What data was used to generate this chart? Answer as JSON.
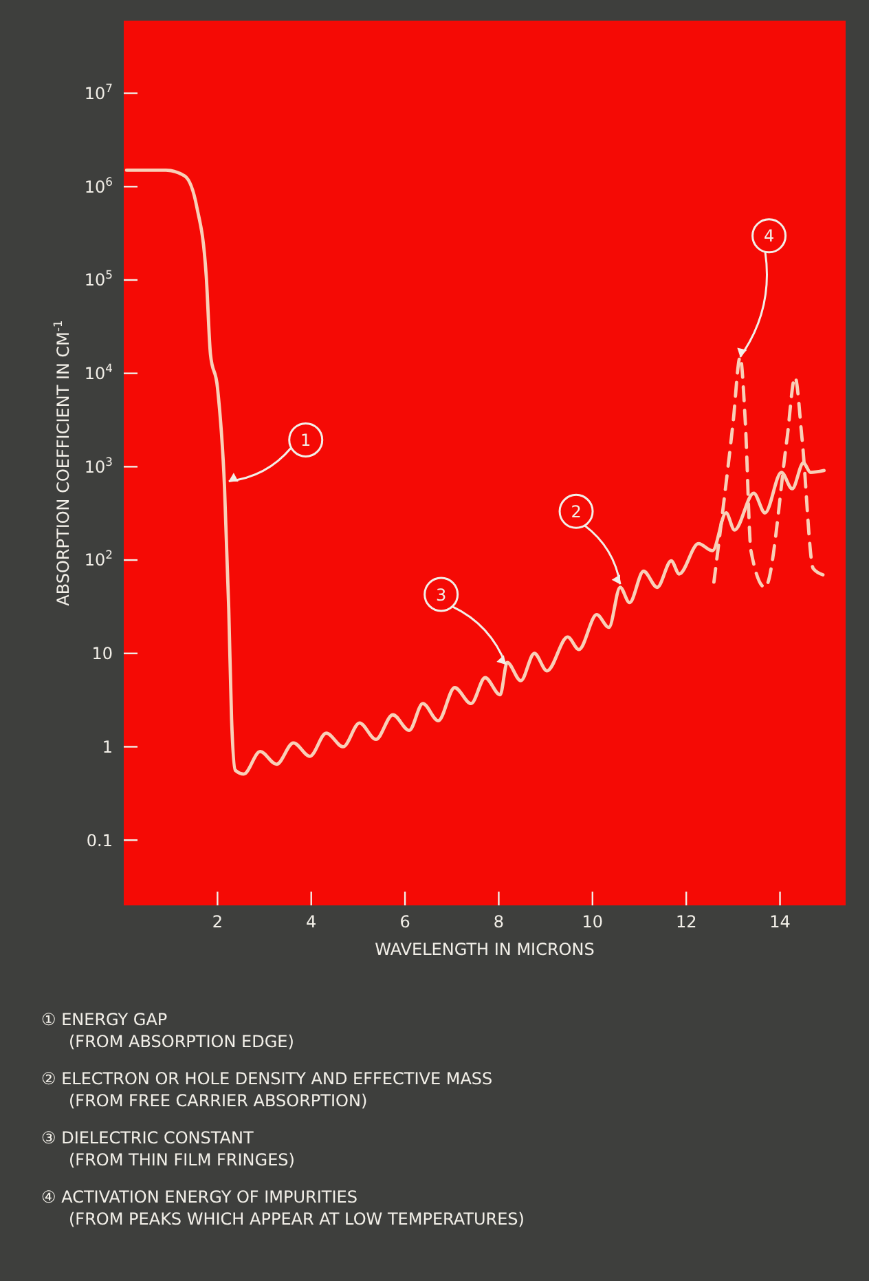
{
  "chart_data": {
    "type": "line",
    "xlabel": "WAVELENGTH IN MICRONS",
    "ylabel": "ABSORPTION COEFFICIENT IN CM$^{-1}$",
    "log": "y",
    "xlim": [
      0,
      15.4
    ],
    "xticks": [
      2,
      4,
      6,
      8,
      10,
      12,
      14
    ],
    "ylim": [
      0.02,
      60000000
    ],
    "yticks": [
      {
        "value": 0.1,
        "label": "0.1"
      },
      1,
      10,
      {
        "value": 100,
        "label": "10$^{2}$"
      },
      {
        "value": 1000,
        "label": "10$^{3}$"
      },
      {
        "value": 10000,
        "label": "10$^{4}$"
      },
      {
        "value": 100000,
        "label": "10$^{5}$"
      },
      {
        "value": 1000000,
        "label": "10$^{6}$"
      },
      {
        "value": 10000000,
        "label": "10$^{7}$"
      }
    ],
    "grid": false,
    "series": [
      {
        "color": "#f8d0b8",
        "line_style": "solid",
        "x": [
          0.06,
          0.9,
          1.3,
          1.56,
          1.76,
          1.85,
          2.0,
          2.15,
          2.24,
          2.3,
          2.38,
          2.56,
          2.91,
          3.26,
          3.62,
          3.97,
          4.32,
          4.68,
          5.03,
          5.38,
          5.74,
          6.09,
          6.38,
          6.71,
          7.06,
          7.41,
          7.71,
          8.03,
          8.18,
          8.47,
          8.76,
          9.03,
          9.47,
          9.71,
          10.09,
          10.35,
          10.59,
          10.79,
          11.09,
          11.38,
          11.68,
          11.85,
          12.26,
          12.56,
          12.85,
          13.03,
          13.44,
          13.68,
          14.03,
          14.26,
          14.5,
          14.65,
          14.94
        ],
        "values": [
          1500000,
          1500000,
          1300000,
          600000,
          110000,
          16000,
          7000,
          600,
          30,
          2,
          0.56,
          0.51,
          0.89,
          0.65,
          1.1,
          0.79,
          1.4,
          1.0,
          1.8,
          1.2,
          2.2,
          1.5,
          2.9,
          1.9,
          4.3,
          2.9,
          5.5,
          3.6,
          8,
          5.1,
          10,
          6.5,
          15,
          11,
          26,
          19,
          51,
          35,
          76,
          51,
          98,
          71,
          150,
          126,
          320,
          210,
          520,
          320,
          870,
          580,
          1100,
          870,
          910
        ]
      },
      {
        "color": "#f8d0b8",
        "line_style": "dashed",
        "x": [
          12.59,
          13.0,
          13.15,
          13.26,
          13.38,
          13.68,
          14.15,
          14.32,
          14.47,
          14.71,
          14.94
        ],
        "values": [
          58,
          3000,
          15000,
          3000,
          126,
          51,
          2000,
          9100,
          2000,
          81,
          69
        ]
      }
    ],
    "annotations": [
      {
        "text": "1",
        "x": 2.24,
        "y": 700
      },
      {
        "text": "2",
        "x": 10.59,
        "y": 55
      },
      {
        "text": "3",
        "x": 8.15,
        "y": 7.6
      },
      {
        "text": "4",
        "x": 13.15,
        "y": 15000
      },
      "① ENERGY GAP\n(FROM ABSORPTION EDGE)",
      "② ELECTRON OR HOLE DENSITY AND EFFECTIVE MASS\n(FROM FREE CARRIER ABSORPTION)",
      "③ DIELECTRIC CONSTANT\n(FROM THIN FILM FRINGES)",
      "④ ACTIVATION ENERGY OF IMPURITIES\n(FROM PEAKS WHICH APPEAR AT LOW TEMPERATURES)"
    ]
  }
}
